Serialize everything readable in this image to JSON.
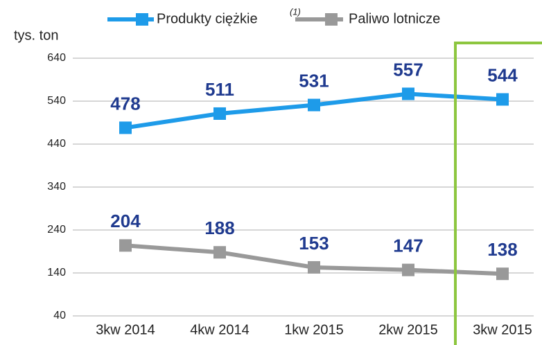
{
  "chart_data": {
    "type": "line",
    "y_axis_label": "tys. ton",
    "legend_superscript": "(1)",
    "categories": [
      "3kw 2014",
      "4kw 2014",
      "1kw 2015",
      "2kw 2015",
      "3kw 2015"
    ],
    "series": [
      {
        "name": "Produkty ciężkie",
        "color": "#1e9be9",
        "values": [
          478,
          511,
          531,
          557,
          544
        ]
      },
      {
        "name": "Paliwo lotnicze",
        "color": "#999999",
        "values": [
          204,
          188,
          153,
          147,
          138
        ]
      }
    ],
    "ylim": [
      40,
      640
    ],
    "yticks": [
      40,
      140,
      240,
      340,
      440,
      540,
      640
    ],
    "grid": true,
    "highlight_color": "#8dc63f",
    "label_color": "#1f3a8f"
  }
}
